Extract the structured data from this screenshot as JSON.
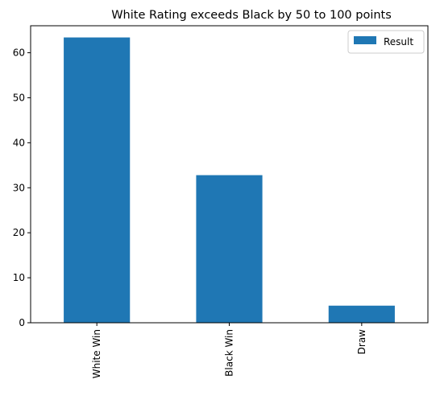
{
  "chart_data": {
    "type": "bar",
    "title": "White Rating exceeds Black by 50 to 100 points",
    "categories": [
      "White Win",
      "Black Win",
      "Draw"
    ],
    "series": [
      {
        "name": "Result",
        "values": [
          63.4,
          32.8,
          3.8
        ]
      }
    ],
    "xlabel": "",
    "ylabel": "",
    "ylim": [
      0,
      66
    ],
    "yticks": [
      0,
      10,
      20,
      30,
      40,
      50,
      60
    ],
    "grid": false,
    "legend": "top-right",
    "bar_color": "#1f77b4"
  }
}
